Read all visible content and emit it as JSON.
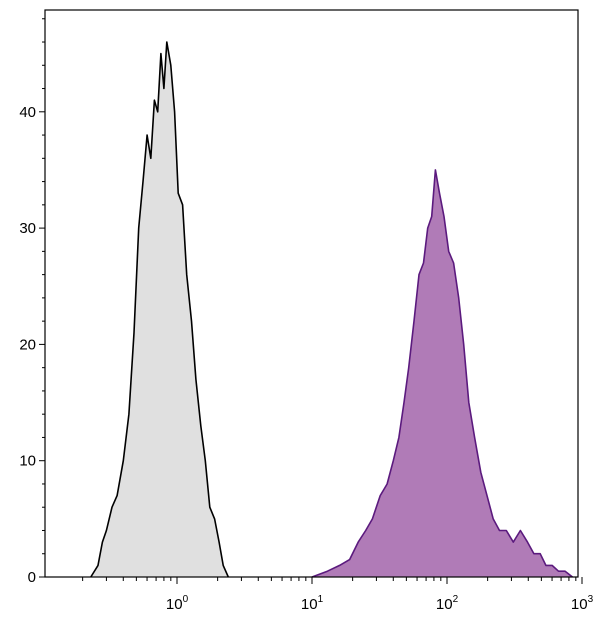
{
  "chart_data": {
    "type": "area",
    "title": "",
    "xlabel": "",
    "ylabel": "",
    "x_scale": "log",
    "xlim": [
      0.1,
      1000
    ],
    "ylim": [
      0,
      50
    ],
    "grid": false,
    "x_ticks": [
      {
        "value": 1,
        "base": "10",
        "exp": "0"
      },
      {
        "value": 10,
        "base": "10",
        "exp": "1"
      },
      {
        "value": 100,
        "base": "10",
        "exp": "2"
      },
      {
        "value": 1000,
        "base": "10",
        "exp": "3"
      }
    ],
    "y_ticks": [
      0,
      10,
      20,
      30,
      40
    ],
    "series": [
      {
        "fill": "#e0e0e0",
        "stroke": "#000000",
        "points": [
          [
            0.23,
            0
          ],
          [
            0.26,
            1
          ],
          [
            0.28,
            3
          ],
          [
            0.3,
            4
          ],
          [
            0.33,
            6
          ],
          [
            0.36,
            7
          ],
          [
            0.4,
            10
          ],
          [
            0.44,
            14
          ],
          [
            0.48,
            21
          ],
          [
            0.52,
            30
          ],
          [
            0.56,
            34
          ],
          [
            0.6,
            38
          ],
          [
            0.64,
            36
          ],
          [
            0.68,
            41
          ],
          [
            0.72,
            40
          ],
          [
            0.76,
            45
          ],
          [
            0.8,
            42
          ],
          [
            0.84,
            46
          ],
          [
            0.9,
            44
          ],
          [
            0.96,
            40
          ],
          [
            1.02,
            33
          ],
          [
            1.1,
            32
          ],
          [
            1.18,
            26
          ],
          [
            1.28,
            22
          ],
          [
            1.38,
            17
          ],
          [
            1.5,
            13
          ],
          [
            1.62,
            10
          ],
          [
            1.75,
            6
          ],
          [
            1.9,
            5
          ],
          [
            2.05,
            3
          ],
          [
            2.2,
            1
          ],
          [
            2.4,
            0
          ]
        ]
      },
      {
        "fill": "#b07bb7",
        "stroke": "#5b1a7e",
        "points": [
          [
            10,
            0
          ],
          [
            13,
            0.5
          ],
          [
            16,
            1
          ],
          [
            19,
            1.5
          ],
          [
            22,
            3
          ],
          [
            25,
            4
          ],
          [
            28,
            5
          ],
          [
            32,
            7
          ],
          [
            36,
            8
          ],
          [
            40,
            10
          ],
          [
            44,
            12
          ],
          [
            48,
            15
          ],
          [
            52,
            18
          ],
          [
            57,
            22
          ],
          [
            62,
            26
          ],
          [
            67,
            27
          ],
          [
            72,
            30
          ],
          [
            77,
            31
          ],
          [
            82,
            35
          ],
          [
            88,
            33
          ],
          [
            95,
            31
          ],
          [
            103,
            28
          ],
          [
            112,
            27
          ],
          [
            122,
            24
          ],
          [
            133,
            20
          ],
          [
            145,
            15
          ],
          [
            160,
            12
          ],
          [
            178,
            9
          ],
          [
            198,
            7
          ],
          [
            220,
            5
          ],
          [
            245,
            4
          ],
          [
            275,
            4
          ],
          [
            310,
            3
          ],
          [
            350,
            4
          ],
          [
            395,
            3
          ],
          [
            440,
            2
          ],
          [
            490,
            2
          ],
          [
            540,
            1
          ],
          [
            600,
            1
          ],
          [
            670,
            0.5
          ],
          [
            750,
            0.5
          ],
          [
            850,
            0
          ]
        ]
      }
    ]
  }
}
